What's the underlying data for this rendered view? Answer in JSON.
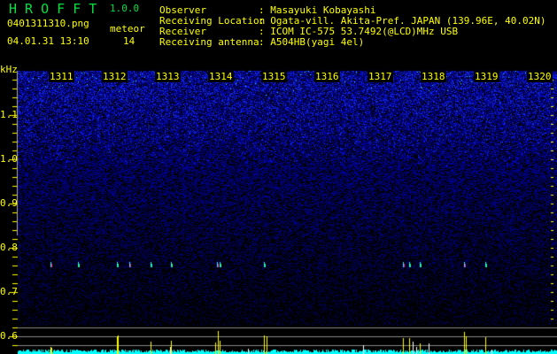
{
  "app": {
    "name": "H R O F F T",
    "version": "1.0.0"
  },
  "file_name": "0401311310.png",
  "datetime": "04.01.31 13:10",
  "meteor": {
    "label": "meteor",
    "count": "14"
  },
  "info": [
    {
      "label": "Observer",
      "value": ": Masayuki Kobayashi"
    },
    {
      "label": "Receiving Location",
      "value": ": Ogata-vill. Akita-Pref. JAPAN (139.96E, 40.02N)"
    },
    {
      "label": "Receiver",
      "value": ": ICOM IC-575 53.7492(@LCD)MHz USB"
    },
    {
      "label": "Receiving antenna",
      "value": ": A504HB(yagi 4el)"
    }
  ],
  "chart_data": {
    "type": "heatmap",
    "yunit": "kHz",
    "x_ticks": [
      "1311",
      "1312",
      "1313",
      "1314",
      "1315",
      "1316",
      "1317",
      "1318",
      "1319",
      "1320"
    ],
    "y_ticks": [
      "1.1",
      "1.0",
      "0.9",
      "0.8",
      "0.7",
      "0.6"
    ],
    "colors": {
      "background": "#000000",
      "noise": "#1010d0",
      "echo": "#ff2080",
      "text": "#ffff00",
      "title": "#00e040",
      "bars": "#00ffff",
      "meteor_bars": "#ffff00"
    }
  }
}
